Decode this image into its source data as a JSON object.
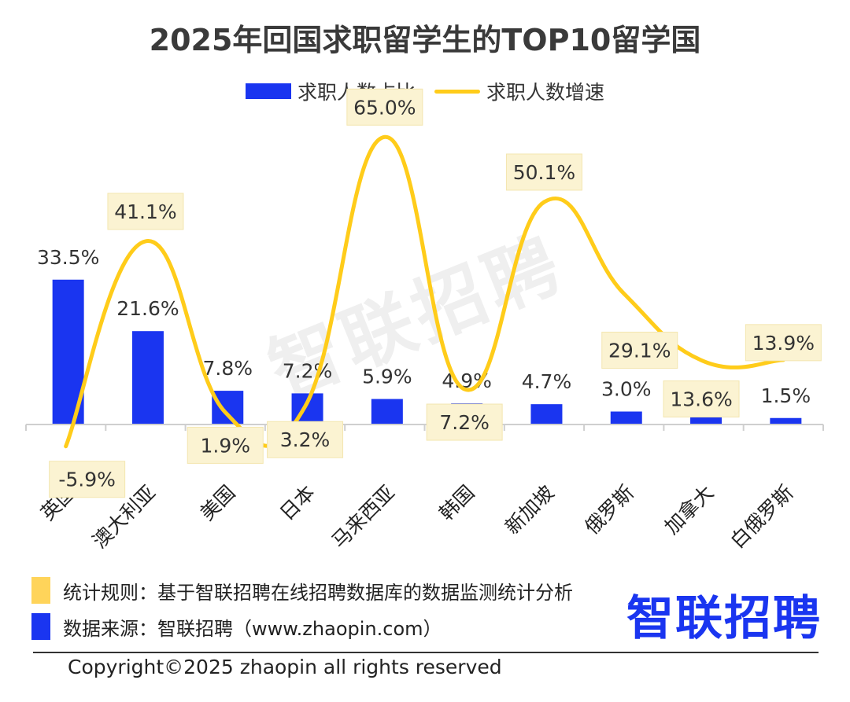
{
  "title": "2025年回国求职留学生的TOP10留学国",
  "legend": {
    "bar_label": "求职人数占比",
    "line_label": "求职人数增速"
  },
  "colors": {
    "bar": "#1a35f0",
    "line": "#ffcc1a",
    "label_box": "#fbf3d2"
  },
  "watermark": "智联招聘",
  "chart_data": {
    "type": "bar",
    "categories": [
      "英国",
      "澳大利亚",
      "美国",
      "日本",
      "马来西亚",
      "韩国",
      "新加坡",
      "俄罗斯",
      "加拿大",
      "白俄罗斯"
    ],
    "series": [
      {
        "name": "求职人数占比",
        "type": "bar",
        "values": [
          33.5,
          21.6,
          7.8,
          7.2,
          5.9,
          4.9,
          4.7,
          3.0,
          2.0,
          1.5
        ],
        "labels": [
          "33.5%",
          "21.6%",
          "7.8%",
          "7.2%",
          "5.9%",
          "4.9%",
          "4.7%",
          "3.0%",
          "2.0%",
          "1.5%"
        ]
      },
      {
        "name": "求职人数增速",
        "type": "line",
        "values": [
          -5.9,
          41.1,
          1.9,
          3.2,
          65.0,
          7.2,
          50.1,
          29.1,
          13.6,
          13.9
        ],
        "labels": [
          "-5.9%",
          "41.1%",
          "1.9%",
          "3.2%",
          "65.0%",
          "7.2%",
          "50.1%",
          "29.1%",
          "13.6%",
          "13.9%"
        ]
      }
    ],
    "legend_position": "top-center",
    "grid": false
  },
  "notes": {
    "rule": "统计规则：基于智联招聘在线招聘数据库的数据监测统计分析",
    "source": "数据来源：智联招聘（www.zhaopin.com）"
  },
  "logo_text": "智联招聘",
  "copyright": "Copyright©2025 zhaopin all rights reserved"
}
